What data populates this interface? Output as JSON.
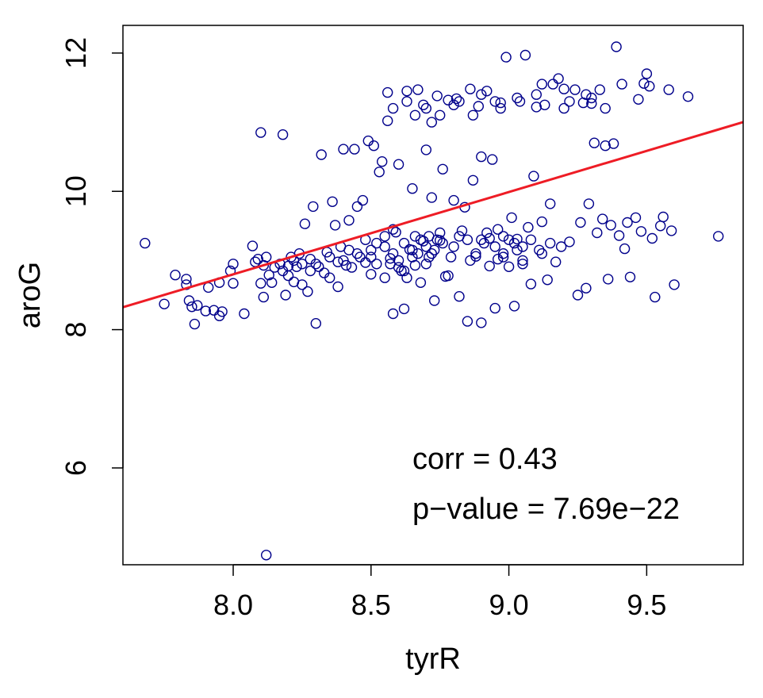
{
  "chart_data": {
    "type": "scatter",
    "xlabel": "tyrR",
    "ylabel": "aroG",
    "xlim": [
      7.6,
      9.85
    ],
    "ylim": [
      4.6,
      12.4
    ],
    "xticks": [
      8.0,
      8.5,
      9.0,
      9.5
    ],
    "xtick_labels": [
      "8.0",
      "8.5",
      "9.0",
      "9.5"
    ],
    "yticks": [
      6,
      8,
      10,
      12
    ],
    "ytick_labels": [
      "6",
      "8",
      "10",
      "12"
    ],
    "grid": false,
    "point_color": "#00008b",
    "line_color": "#ee1c25",
    "regression_line": {
      "intercept": -0.72,
      "slope": 1.19
    },
    "annotations": [
      "corr = 0.43",
      "p−value = 7.69e−22"
    ],
    "points": [
      [
        7.68,
        9.25
      ],
      [
        7.75,
        8.37
      ],
      [
        7.79,
        8.79
      ],
      [
        7.83,
        8.65
      ],
      [
        7.83,
        8.73
      ],
      [
        7.84,
        8.42
      ],
      [
        7.85,
        8.33
      ],
      [
        7.86,
        8.08
      ],
      [
        7.87,
        8.35
      ],
      [
        7.9,
        8.27
      ],
      [
        7.91,
        8.61
      ],
      [
        7.93,
        8.28
      ],
      [
        7.95,
        8.2
      ],
      [
        7.95,
        8.68
      ],
      [
        7.96,
        8.26
      ],
      [
        7.99,
        8.85
      ],
      [
        8.0,
        8.67
      ],
      [
        8.0,
        8.95
      ],
      [
        8.04,
        8.23
      ],
      [
        8.07,
        9.21
      ],
      [
        8.08,
        8.98
      ],
      [
        8.09,
        9.02
      ],
      [
        8.1,
        10.85
      ],
      [
        8.1,
        8.67
      ],
      [
        8.11,
        8.93
      ],
      [
        8.11,
        8.47
      ],
      [
        8.12,
        9.05
      ],
      [
        8.12,
        4.74
      ],
      [
        8.13,
        8.79
      ],
      [
        8.14,
        8.68
      ],
      [
        8.15,
        8.9
      ],
      [
        8.17,
        8.95
      ],
      [
        8.18,
        10.82
      ],
      [
        8.19,
        8.5
      ],
      [
        8.2,
        8.78
      ],
      [
        8.21,
        9.05
      ],
      [
        8.22,
        8.69
      ],
      [
        8.23,
        8.91
      ],
      [
        8.24,
        9.1
      ],
      [
        8.25,
        8.65
      ],
      [
        8.26,
        9.53
      ],
      [
        8.27,
        8.55
      ],
      [
        8.28,
        9.02
      ],
      [
        8.29,
        9.78
      ],
      [
        8.3,
        8.09
      ],
      [
        8.31,
        8.91
      ],
      [
        8.32,
        10.53
      ],
      [
        8.33,
        8.82
      ],
      [
        8.34,
        9.12
      ],
      [
        8.35,
        8.75
      ],
      [
        8.36,
        9.85
      ],
      [
        8.37,
        9.51
      ],
      [
        8.38,
        8.62
      ],
      [
        8.39,
        9.2
      ],
      [
        8.4,
        10.61
      ],
      [
        8.41,
        8.93
      ],
      [
        8.42,
        9.58
      ],
      [
        8.43,
        8.9
      ],
      [
        8.44,
        10.61
      ],
      [
        8.45,
        9.78
      ],
      [
        8.46,
        9.05
      ],
      [
        8.47,
        9.87
      ],
      [
        8.48,
        8.97
      ],
      [
        8.49,
        10.73
      ],
      [
        8.5,
        9.15
      ],
      [
        8.51,
        10.66
      ],
      [
        8.52,
        9.25
      ],
      [
        8.53,
        10.28
      ],
      [
        8.54,
        10.43
      ],
      [
        8.55,
        8.75
      ],
      [
        8.56,
        11.02
      ],
      [
        8.56,
        11.43
      ],
      [
        8.57,
        9.03
      ],
      [
        8.58,
        8.23
      ],
      [
        8.59,
        9.41
      ],
      [
        8.6,
        10.39
      ],
      [
        8.61,
        8.85
      ],
      [
        8.62,
        8.3
      ],
      [
        8.63,
        11.45
      ],
      [
        8.64,
        9.16
      ],
      [
        8.65,
        10.04
      ],
      [
        8.66,
        8.93
      ],
      [
        8.67,
        11.47
      ],
      [
        8.68,
        8.68
      ],
      [
        8.69,
        11.25
      ],
      [
        8.7,
        10.6
      ],
      [
        8.71,
        9.05
      ],
      [
        8.72,
        9.91
      ],
      [
        8.73,
        8.42
      ],
      [
        8.74,
        11.38
      ],
      [
        8.75,
        9.29
      ],
      [
        8.76,
        10.32
      ],
      [
        8.77,
        8.77
      ],
      [
        8.78,
        11.32
      ],
      [
        8.79,
        9.05
      ],
      [
        8.8,
        9.87
      ],
      [
        8.81,
        11.34
      ],
      [
        8.82,
        8.48
      ],
      [
        8.83,
        9.43
      ],
      [
        8.84,
        9.77
      ],
      [
        8.85,
        8.12
      ],
      [
        8.86,
        11.48
      ],
      [
        8.87,
        10.16
      ],
      [
        8.88,
        9.06
      ],
      [
        8.89,
        11.23
      ],
      [
        8.9,
        8.1
      ],
      [
        8.9,
        10.5
      ],
      [
        8.91,
        9.25
      ],
      [
        8.92,
        11.45
      ],
      [
        8.93,
        9.32
      ],
      [
        8.94,
        10.46
      ],
      [
        8.95,
        8.31
      ],
      [
        8.96,
        9.02
      ],
      [
        8.97,
        11.28
      ],
      [
        8.98,
        9.35
      ],
      [
        8.99,
        11.94
      ],
      [
        9.0,
        8.91
      ],
      [
        9.01,
        9.62
      ],
      [
        9.02,
        8.34
      ],
      [
        9.03,
        9.31
      ],
      [
        9.04,
        11.3
      ],
      [
        9.05,
        9.0
      ],
      [
        9.06,
        11.97
      ],
      [
        9.07,
        9.48
      ],
      [
        9.08,
        8.66
      ],
      [
        9.09,
        10.22
      ],
      [
        9.1,
        11.22
      ],
      [
        9.11,
        9.15
      ],
      [
        9.12,
        9.56
      ],
      [
        9.13,
        11.25
      ],
      [
        9.14,
        8.72
      ],
      [
        9.15,
        9.82
      ],
      [
        9.16,
        11.55
      ],
      [
        9.17,
        8.98
      ],
      [
        9.18,
        11.63
      ],
      [
        9.19,
        9.2
      ],
      [
        9.2,
        11.48
      ],
      [
        9.22,
        9.27
      ],
      [
        9.24,
        11.47
      ],
      [
        9.25,
        8.5
      ],
      [
        9.26,
        9.55
      ],
      [
        9.27,
        11.28
      ],
      [
        9.28,
        8.6
      ],
      [
        9.29,
        9.82
      ],
      [
        9.3,
        11.27
      ],
      [
        9.31,
        10.7
      ],
      [
        9.32,
        9.4
      ],
      [
        9.33,
        11.47
      ],
      [
        9.34,
        9.6
      ],
      [
        9.35,
        10.66
      ],
      [
        9.36,
        8.73
      ],
      [
        9.37,
        9.51
      ],
      [
        9.38,
        10.69
      ],
      [
        9.39,
        12.09
      ],
      [
        9.4,
        9.36
      ],
      [
        9.41,
        11.55
      ],
      [
        9.42,
        9.17
      ],
      [
        9.43,
        9.55
      ],
      [
        9.44,
        8.76
      ],
      [
        9.46,
        9.62
      ],
      [
        9.47,
        11.33
      ],
      [
        9.48,
        9.42
      ],
      [
        9.49,
        11.56
      ],
      [
        9.5,
        11.7
      ],
      [
        9.51,
        11.52
      ],
      [
        9.52,
        9.32
      ],
      [
        9.53,
        8.47
      ],
      [
        9.55,
        9.5
      ],
      [
        9.56,
        9.63
      ],
      [
        9.58,
        11.47
      ],
      [
        9.59,
        9.43
      ],
      [
        9.6,
        8.65
      ],
      [
        9.65,
        11.37
      ],
      [
        9.76,
        9.35
      ],
      [
        8.4,
        9.0
      ],
      [
        8.45,
        9.1
      ],
      [
        8.5,
        9.05
      ],
      [
        8.52,
        8.95
      ],
      [
        8.55,
        9.2
      ],
      [
        8.58,
        9.1
      ],
      [
        8.6,
        9.0
      ],
      [
        8.62,
        9.25
      ],
      [
        8.65,
        9.15
      ],
      [
        8.68,
        9.3
      ],
      [
        8.7,
        9.2
      ],
      [
        8.72,
        9.1
      ],
      [
        8.74,
        9.3
      ],
      [
        8.76,
        9.25
      ],
      [
        8.8,
        9.2
      ],
      [
        8.85,
        9.3
      ],
      [
        8.88,
        9.1
      ],
      [
        8.92,
        9.4
      ],
      [
        8.95,
        9.2
      ],
      [
        8.98,
        9.1
      ],
      [
        9.0,
        9.3
      ],
      [
        9.02,
        9.25
      ],
      [
        9.05,
        9.2
      ],
      [
        8.55,
        9.35
      ],
      [
        8.6,
        8.9
      ],
      [
        8.65,
        9.05
      ],
      [
        8.7,
        8.95
      ],
      [
        8.75,
        9.4
      ],
      [
        8.48,
        9.3
      ],
      [
        8.42,
        9.15
      ],
      [
        8.38,
        8.98
      ],
      [
        8.35,
        9.05
      ],
      [
        8.3,
        8.95
      ],
      [
        8.28,
        8.85
      ],
      [
        8.25,
        8.95
      ],
      [
        8.22,
        9.0
      ],
      [
        8.2,
        8.92
      ],
      [
        8.18,
        8.85
      ],
      [
        8.58,
        9.45
      ],
      [
        8.66,
        9.35
      ],
      [
        8.73,
        9.15
      ],
      [
        8.82,
        9.35
      ],
      [
        8.9,
        9.3
      ],
      [
        8.96,
        9.45
      ],
      [
        9.03,
        9.15
      ],
      [
        9.08,
        9.3
      ],
      [
        9.12,
        9.1
      ],
      [
        9.15,
        9.25
      ],
      [
        8.5,
        8.8
      ],
      [
        8.63,
        8.75
      ],
      [
        8.78,
        8.78
      ],
      [
        8.86,
        9.0
      ],
      [
        8.93,
        8.92
      ],
      [
        8.98,
        9.05
      ],
      [
        9.05,
        8.95
      ],
      [
        8.57,
        8.95
      ],
      [
        8.62,
        8.85
      ],
      [
        8.67,
        9.1
      ],
      [
        8.69,
        9.28
      ],
      [
        8.71,
        9.35
      ],
      [
        8.63,
        11.3
      ],
      [
        8.7,
        11.2
      ],
      [
        8.75,
        11.1
      ],
      [
        8.8,
        11.25
      ],
      [
        8.9,
        11.4
      ],
      [
        8.95,
        11.3
      ],
      [
        9.1,
        11.4
      ],
      [
        9.2,
        11.2
      ],
      [
        9.3,
        11.35
      ],
      [
        9.35,
        11.2
      ],
      [
        8.58,
        11.2
      ],
      [
        8.66,
        11.1
      ],
      [
        8.72,
        11.0
      ],
      [
        8.82,
        11.3
      ],
      [
        8.87,
        11.1
      ],
      [
        8.97,
        11.2
      ],
      [
        9.03,
        11.35
      ],
      [
        9.12,
        11.55
      ],
      [
        9.22,
        11.3
      ],
      [
        9.28,
        11.4
      ]
    ]
  }
}
